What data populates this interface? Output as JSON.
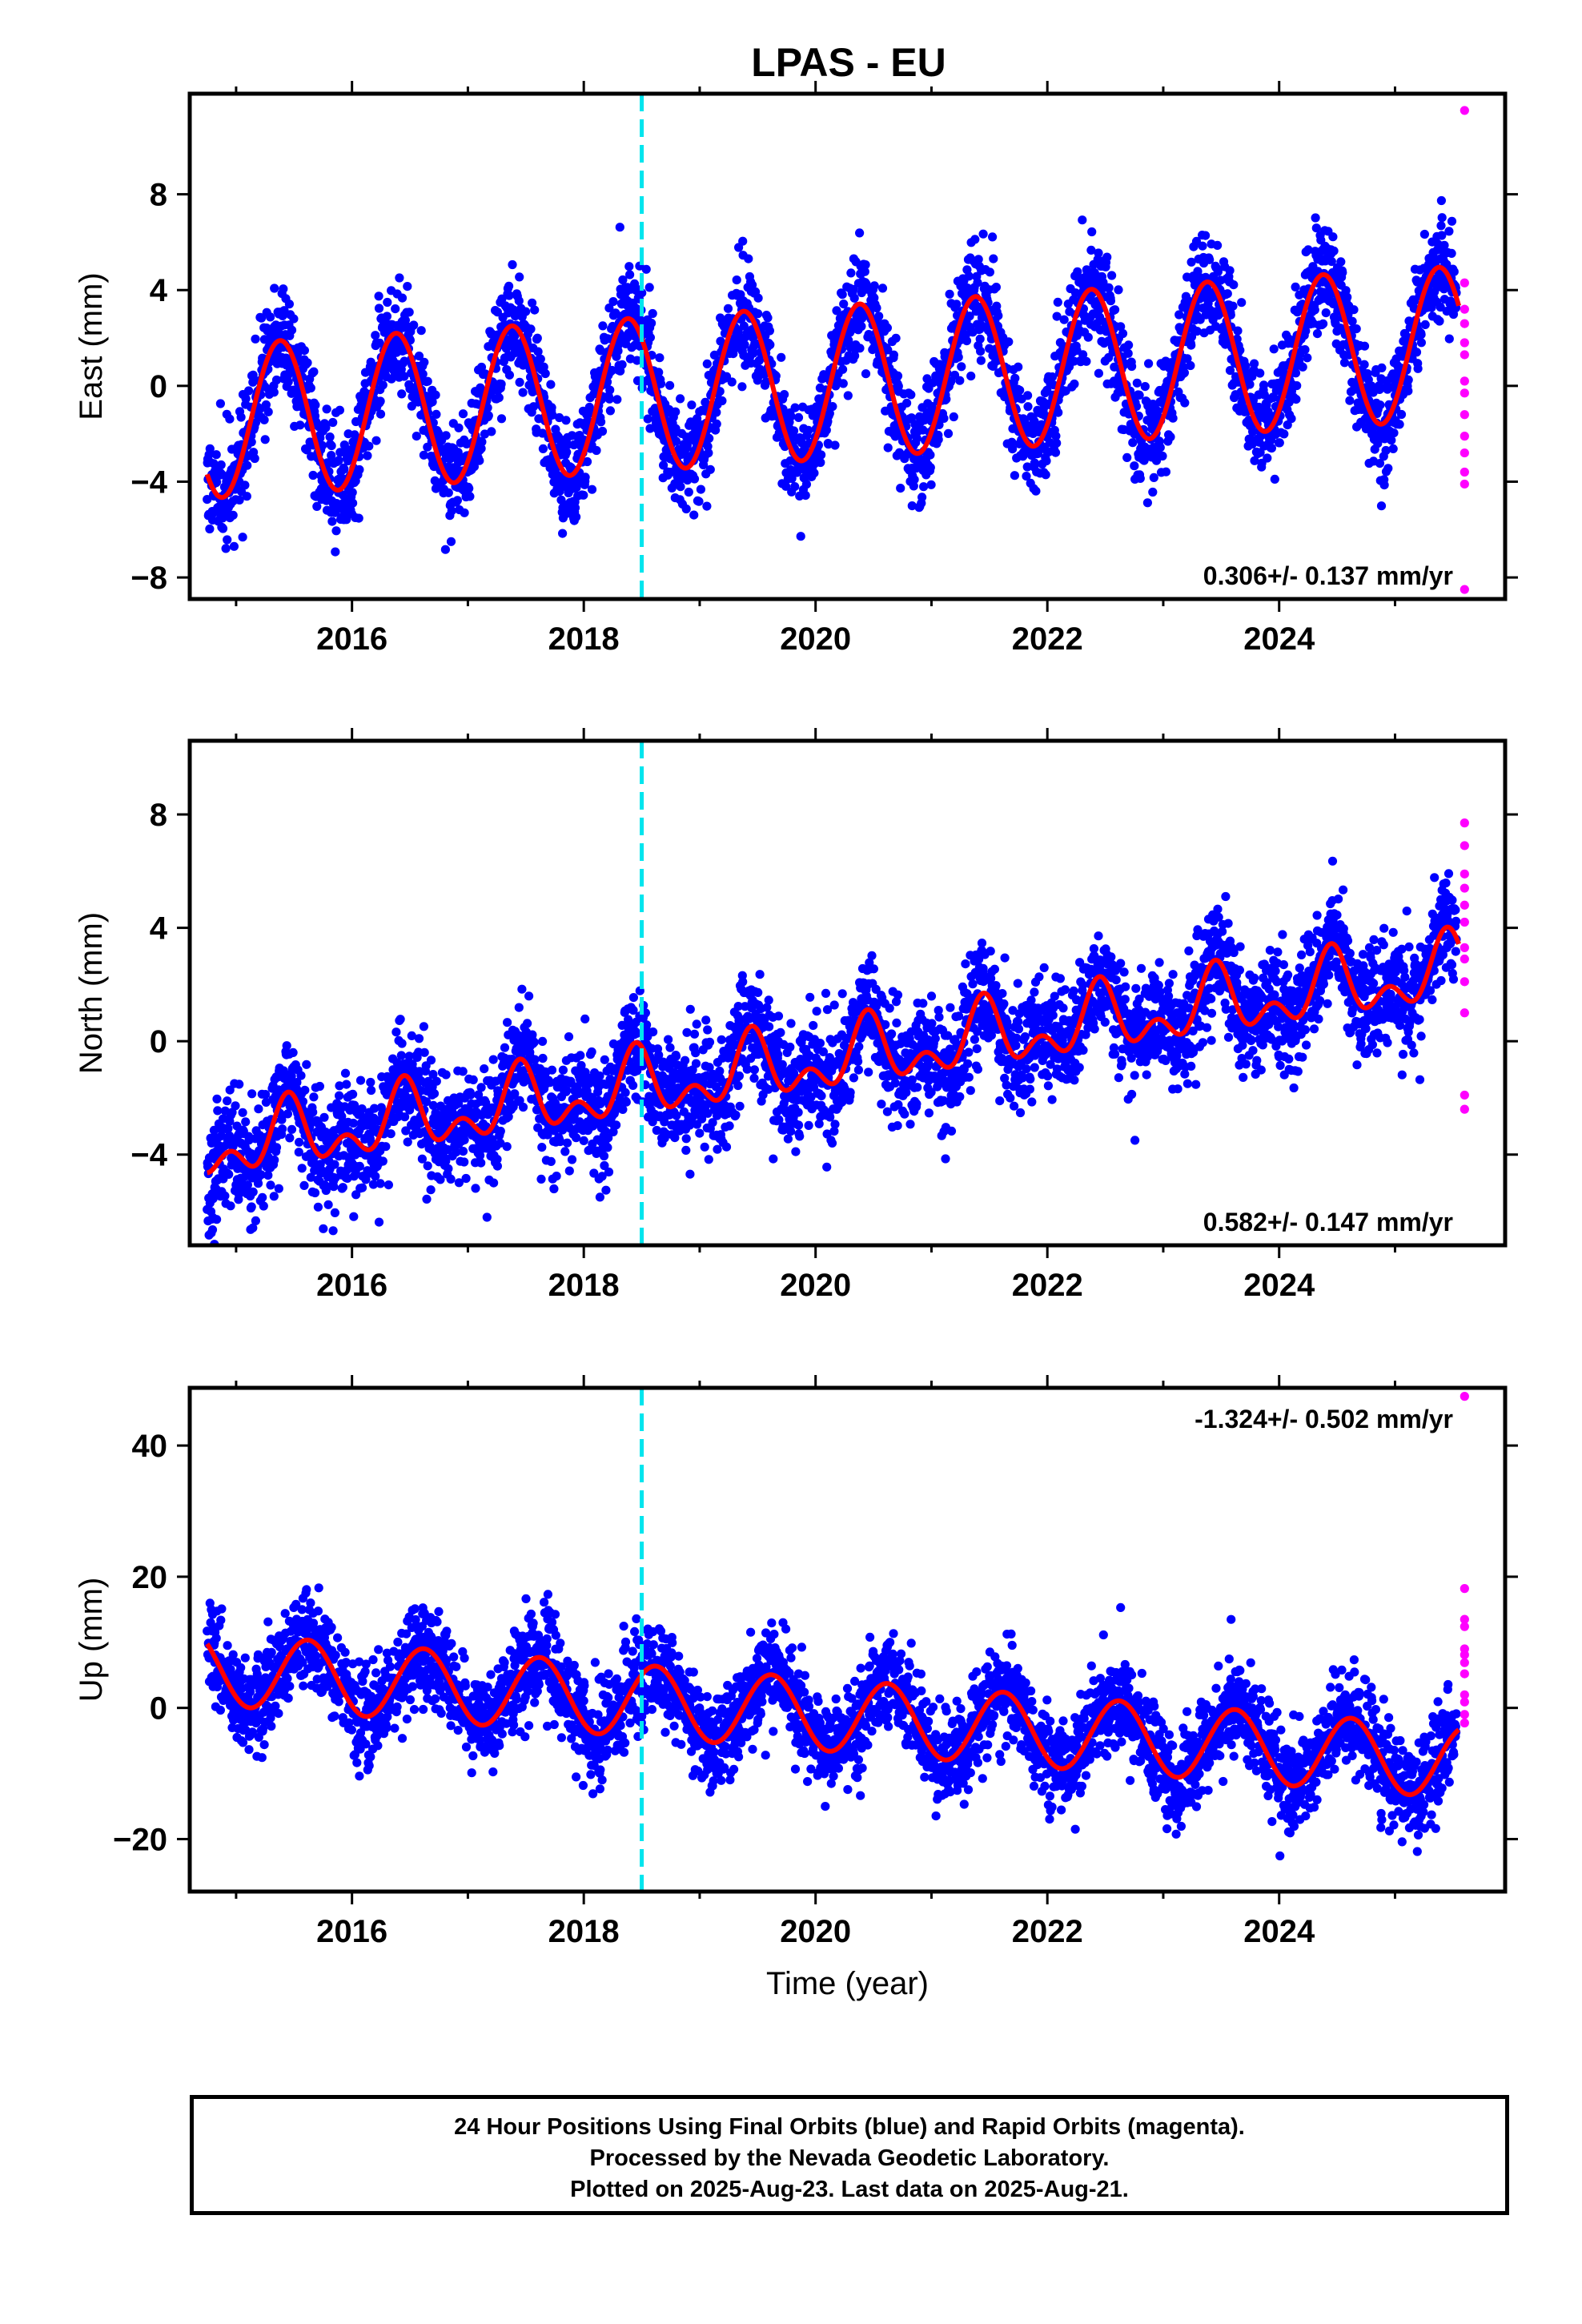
{
  "title": "LPAS - EU",
  "caption": {
    "line1": "24 Hour Positions Using Final Orbits (blue) and Rapid Orbits (magenta).",
    "line2": "Processed by the Nevada Geodetic Laboratory.",
    "line3": "Plotted on 2025-Aug-23. Last data on 2025-Aug-21."
  },
  "colors": {
    "final_orbits": "#0000ff",
    "rapid_orbits": "#ff00ff",
    "model_fit": "#ff0000",
    "event_marker": "#00e5ee",
    "axes": "#000000"
  },
  "chart_data": [
    {
      "type": "scatter",
      "panel": "east",
      "ylabel": "East (mm)",
      "xlabel": "",
      "xlim": [
        2014.6,
        2025.95
      ],
      "ylim": [
        -8.9,
        12.2
      ],
      "xticks": [
        2016,
        2018,
        2020,
        2022,
        2024
      ],
      "yticks": [
        -8,
        -4,
        0,
        4,
        8
      ],
      "annotation": "0.306+/- 0.137 mm/yr",
      "annotation_position": "bottom-right",
      "event_line_year": 2018.5,
      "model": {
        "offset": -1.5,
        "start": 2014.75,
        "rate": 0.306,
        "annual_amp": 3.2,
        "annual_phase": 2015.38,
        "semiannual_amp": 0,
        "semiannual_phase": 2015.2,
        "noise": 1.1,
        "jitter_scale": 1.0,
        "amp_growth": 0.0,
        "seed": 11
      },
      "series": [
        {
          "name": "Final Orbits",
          "color": "#0000ff",
          "x_range": [
            2014.75,
            2025.53
          ],
          "sampling": "daily"
        },
        {
          "name": "Rapid Orbits",
          "color": "#ff00ff",
          "x": [
            2025.6,
            2025.6,
            2025.6,
            2025.6,
            2025.6,
            2025.6,
            2025.6,
            2025.6,
            2025.6,
            2025.6,
            2025.6,
            2025.6,
            2025.6,
            2025.6
          ],
          "y": [
            11.5,
            4.3,
            3.2,
            2.6,
            1.8,
            1.3,
            0.2,
            -0.3,
            -1.2,
            -2.1,
            -2.8,
            -3.6,
            -4.1,
            -8.5
          ]
        }
      ]
    },
    {
      "type": "scatter",
      "panel": "north",
      "ylabel": "North (mm)",
      "xlabel": "",
      "xlim": [
        2014.6,
        2025.95
      ],
      "ylim": [
        -7.2,
        10.6
      ],
      "xticks": [
        2016,
        2018,
        2020,
        2022,
        2024
      ],
      "yticks": [
        -4,
        0,
        4,
        8
      ],
      "annotation": "0.582+/- 0.147 mm/yr",
      "annotation_position": "bottom-right",
      "event_line_year": 2018.5,
      "model": {
        "offset": -3.8,
        "start": 2014.75,
        "rate": 0.582,
        "annual_amp": 0.9,
        "annual_phase": 2015.45,
        "semiannual_amp": 0.7,
        "semiannual_phase": 2015.45,
        "noise": 1.0,
        "jitter_scale": 1.0,
        "amp_growth": 0.0,
        "seed": 23
      },
      "series": [
        {
          "name": "Final Orbits",
          "color": "#0000ff",
          "x_range": [
            2014.75,
            2025.53
          ],
          "sampling": "daily"
        },
        {
          "name": "Rapid Orbits",
          "color": "#ff00ff",
          "x": [
            2025.6,
            2025.6,
            2025.6,
            2025.6,
            2025.6,
            2025.6,
            2025.6,
            2025.6,
            2025.6,
            2025.6,
            2025.6,
            2025.6
          ],
          "y": [
            7.7,
            6.9,
            5.9,
            5.4,
            4.8,
            4.2,
            3.3,
            2.9,
            2.1,
            1.0,
            -1.9,
            -2.4
          ]
        }
      ]
    },
    {
      "type": "scatter",
      "panel": "up",
      "ylabel": "Up (mm)",
      "xlabel": "Time (year)",
      "xlim": [
        2014.6,
        2025.95
      ],
      "ylim": [
        -28,
        48.8
      ],
      "xticks": [
        2016,
        2018,
        2020,
        2022,
        2024
      ],
      "yticks": [
        -20,
        0,
        20,
        40
      ],
      "annotation": "-1.324+/- 0.502 mm/yr",
      "annotation_position": "top-right",
      "event_line_year": 2018.5,
      "model": {
        "offset": 6.0,
        "start": 2014.75,
        "rate": -1.324,
        "annual_amp": 5.5,
        "annual_phase": 2015.62,
        "semiannual_amp": 0,
        "semiannual_phase": 2015.4,
        "noise": 3.6,
        "jitter_scale": 1.0,
        "amp_growth": 0.0,
        "seed": 37
      },
      "series": [
        {
          "name": "Final Orbits",
          "color": "#0000ff",
          "x_range": [
            2014.75,
            2025.53
          ],
          "sampling": "daily"
        },
        {
          "name": "Rapid Orbits",
          "color": "#ff00ff",
          "x": [
            2025.6,
            2025.6,
            2025.6,
            2025.6,
            2025.6,
            2025.6,
            2025.6,
            2025.6,
            2025.6,
            2025.6,
            2025.6,
            2025.6
          ],
          "y": [
            47.5,
            18.2,
            13.5,
            12.4,
            9.0,
            8.1,
            6.9,
            5.2,
            2.0,
            0.9,
            -1.0,
            -2.3
          ]
        }
      ]
    }
  ]
}
